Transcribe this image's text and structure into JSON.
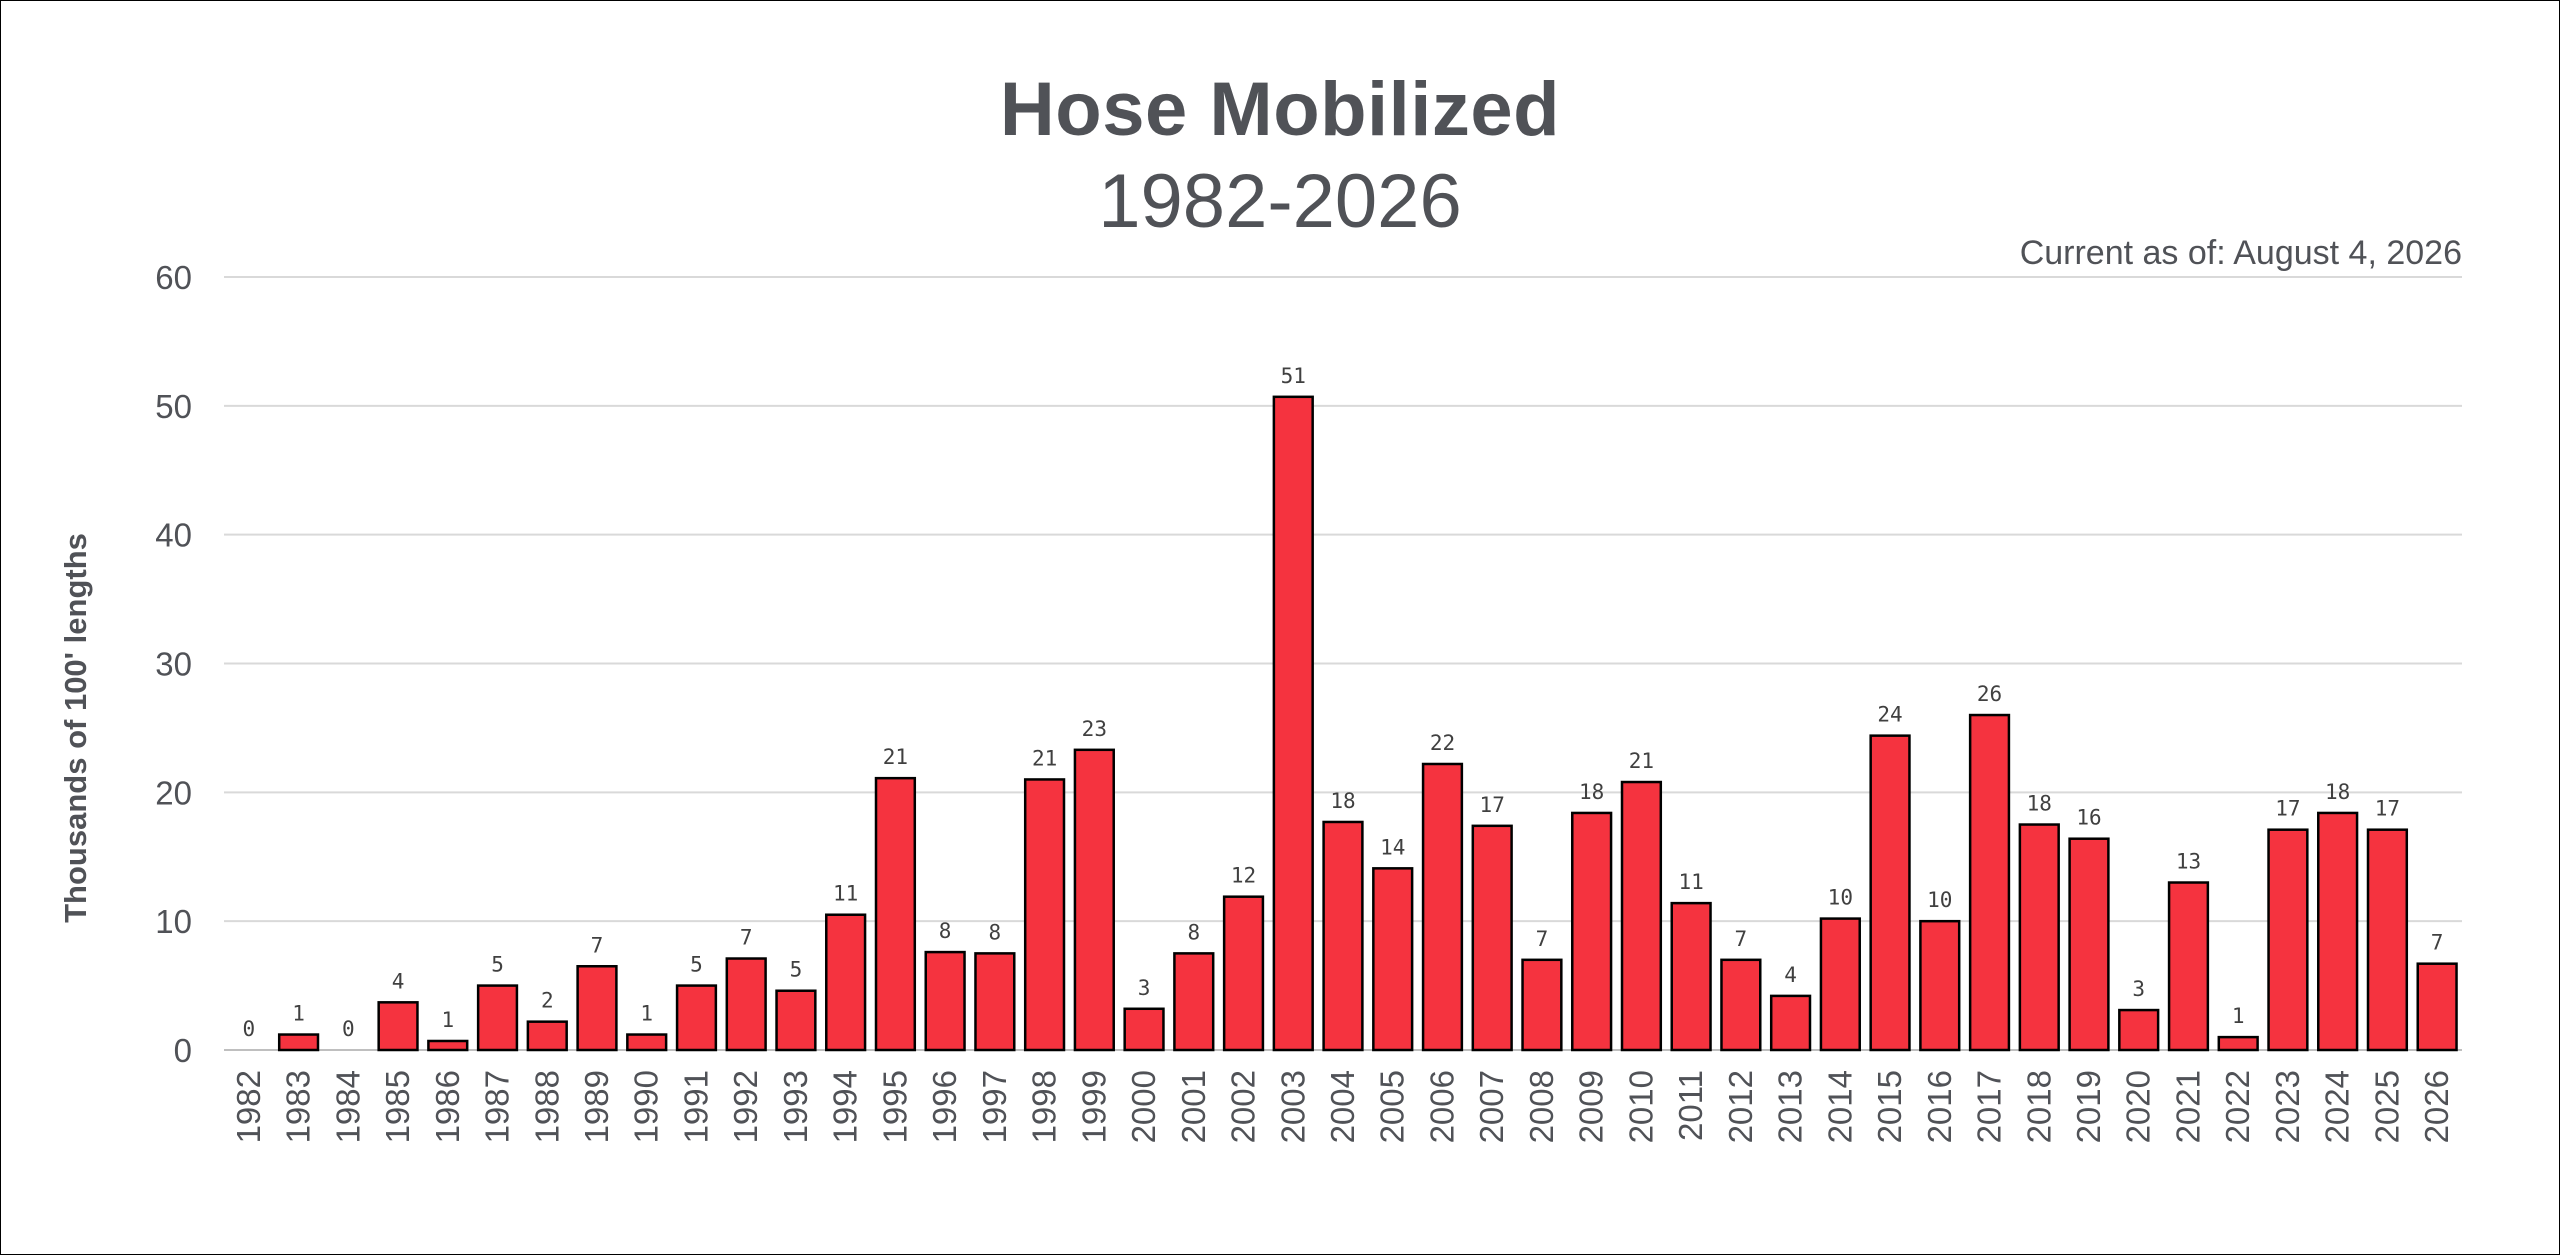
{
  "header": {
    "title": "Hose Mobilized",
    "subtitle": "1982-2026",
    "current_as_of": "Current as of: August 4, 2026"
  },
  "colors": {
    "bar": "#f5333f",
    "bar_border": "#000000",
    "grid": "#d9d9d9",
    "text": "#505257"
  },
  "chart_data": {
    "type": "bar",
    "title": "Hose Mobilized",
    "subtitle": "1982-2026",
    "xlabel": "",
    "ylabel": "Thousands of 100' lengths",
    "ylim": [
      0,
      60
    ],
    "yticks": [
      0,
      10,
      20,
      30,
      40,
      50,
      60
    ],
    "grid": true,
    "legend": "none",
    "categories": [
      "1982",
      "1983",
      "1984",
      "1985",
      "1986",
      "1987",
      "1988",
      "1989",
      "1990",
      "1991",
      "1992",
      "1993",
      "1994",
      "1995",
      "1996",
      "1997",
      "1998",
      "1999",
      "2000",
      "2001",
      "2002",
      "2003",
      "2004",
      "2005",
      "2006",
      "2007",
      "2008",
      "2009",
      "2010",
      "2011",
      "2012",
      "2013",
      "2014",
      "2015",
      "2016",
      "2017",
      "2018",
      "2019",
      "2020",
      "2021",
      "2022",
      "2023",
      "2024",
      "2025",
      "2026"
    ],
    "values": [
      0,
      1.2,
      0,
      3.7,
      0.7,
      5.0,
      2.2,
      6.5,
      1.2,
      5.0,
      7.1,
      4.6,
      10.5,
      21.1,
      7.6,
      7.5,
      21.0,
      23.3,
      3.2,
      7.5,
      11.9,
      50.7,
      17.7,
      14.1,
      22.2,
      17.4,
      7.0,
      18.4,
      20.8,
      11.4,
      7.0,
      4.2,
      10.2,
      24.4,
      10.0,
      26.0,
      17.5,
      16.4,
      3.1,
      13.0,
      1.0,
      17.1,
      18.4,
      17.1,
      6.7
    ],
    "data_labels": [
      "0",
      "1",
      "0",
      "4",
      "1",
      "5",
      "2",
      "7",
      "1",
      "5",
      "7",
      "5",
      "11",
      "21",
      "8",
      "8",
      "21",
      "23",
      "3",
      "8",
      "12",
      "51",
      "18",
      "14",
      "22",
      "17",
      "7",
      "18",
      "21",
      "11",
      "7",
      "4",
      "10",
      "24",
      "10",
      "26",
      "18",
      "16",
      "3",
      "13",
      "1",
      "17",
      "18",
      "17",
      "7"
    ]
  }
}
